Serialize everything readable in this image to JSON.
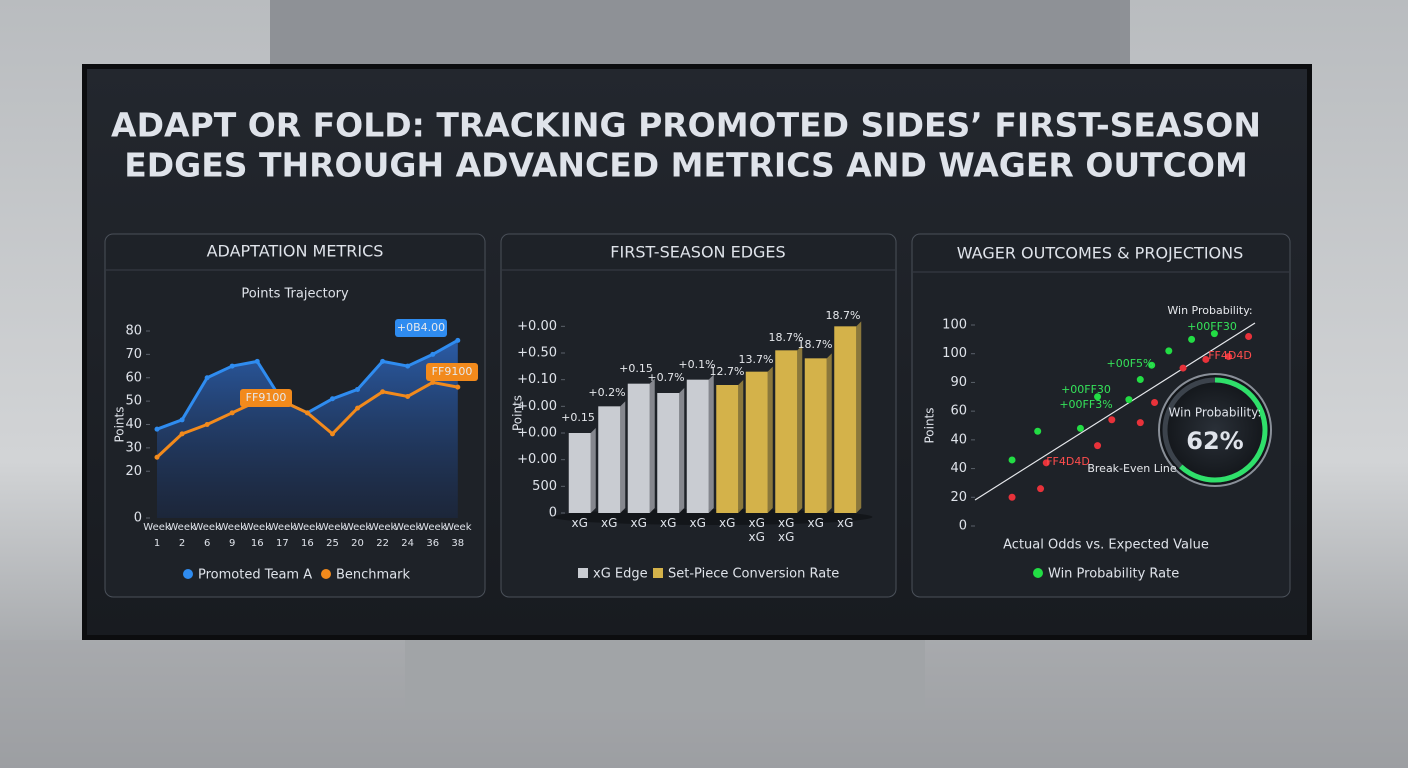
{
  "title": [
    "ADAPT OR FOLD: TRACKING PROMOTED SIDES’ FIRST-SEASON",
    "EDGES THROUGH ADVANCED METRICS AND WAGER OUTCOM"
  ],
  "chart_data": [
    {
      "type": "line",
      "title": "ADAPTATION METRICS",
      "subtitle": "Points Trajectory",
      "y_label": "Points",
      "categories": [
        "Week 1",
        "Week 2",
        "Week 6",
        "Week 9",
        "Week 16",
        "Week 17",
        "Week 16",
        "Week 25",
        "Week 20",
        "Week 22",
        "Week 24",
        "Week 36",
        "Week 38"
      ],
      "series": [
        {
          "name": "Promoted Team A",
          "color": "#2f8cf0",
          "values": [
            38,
            42,
            60,
            65,
            67,
            50,
            45,
            51,
            55,
            67,
            65,
            70,
            76
          ]
        },
        {
          "name": "Benchmark",
          "color": "#f28a1c",
          "values": [
            26,
            36,
            40,
            45,
            50,
            50,
            45,
            36,
            47,
            54,
            52,
            58,
            56
          ]
        }
      ],
      "ylim": [
        0,
        80
      ],
      "yticks": [
        0,
        20,
        30,
        40,
        50,
        60,
        70,
        80
      ],
      "annotations": [
        "+0B4.00",
        "FF9100",
        "FF9100"
      ]
    },
    {
      "type": "bar",
      "title": "FIRST-SEASON EDGES",
      "y_label": "Points",
      "categories": [
        "xG",
        "xG",
        "xG",
        "xG",
        "xG",
        "xG",
        "xG xG",
        "xG xG",
        "xG",
        "xG"
      ],
      "series": [
        {
          "name": "xG Edge",
          "color": "#c9ccd2",
          "values": [
            3.0,
            4.0,
            4.85,
            4.5,
            5.0,
            null,
            null,
            null,
            null,
            null
          ]
        },
        {
          "name": "Set-Piece Conversion Rate",
          "color": "#d4b24a",
          "values": [
            null,
            null,
            null,
            null,
            null,
            4.8,
            5.3,
            6.1,
            5.8,
            7.0
          ]
        }
      ],
      "ylim": [
        0,
        7.5
      ],
      "yticks": [
        {
          "value": 0,
          "label": "0"
        },
        {
          "value": 1,
          "label": "500"
        },
        {
          "value": 2,
          "label": "+0.00"
        },
        {
          "value": 3,
          "label": "+0.00"
        },
        {
          "value": 4,
          "label": "+0.00"
        },
        {
          "value": 5,
          "label": "+0.10"
        },
        {
          "value": 6,
          "label": "+0.50"
        },
        {
          "value": 7,
          "label": "+0.00"
        }
      ],
      "annotations": [
        "+0.15",
        "+0.2%",
        "+0.15",
        "+0.7%",
        "+0.1%",
        "12.7%",
        "13.7%",
        "18.7%",
        "18.7%",
        "18.7%"
      ]
    },
    {
      "type": "scatter",
      "title": "WAGER OUTCOMES & PROJECTIONS",
      "y_label": "Points",
      "x_label": "Actual Odds vs. Expected Value",
      "series": [
        {
          "name": "Win Probability Rate",
          "color": "#22dd44",
          "x": [
            1.3,
            2.2,
            3.7,
            4.3,
            5.4,
            5.8,
            6.2,
            6.8,
            7.6,
            8.4
          ],
          "values": [
            2.3,
            3.3,
            3.4,
            4.5,
            4.4,
            5.1,
            5.6,
            6.1,
            6.5,
            6.7
          ]
        },
        {
          "color": "#e8323a",
          "x": [
            1.3,
            2.3,
            2.5,
            4.3,
            4.8,
            5.8,
            6.3,
            7.3,
            8.1,
            8.9,
            9.6
          ],
          "values": [
            1.0,
            1.3,
            2.2,
            2.8,
            3.7,
            3.6,
            4.3,
            5.5,
            5.8,
            5.9,
            6.6
          ]
        }
      ],
      "xlim": [
        0,
        10
      ],
      "ylim": [
        0,
        7
      ],
      "yticks": [
        {
          "value": 0,
          "label": "0"
        },
        {
          "value": 1,
          "label": "20"
        },
        {
          "value": 2,
          "label": "40"
        },
        {
          "value": 3,
          "label": "40"
        },
        {
          "value": 4,
          "label": "60"
        },
        {
          "value": 5,
          "label": "90"
        },
        {
          "value": 6,
          "label": "100"
        },
        {
          "value": 7,
          "label": "100"
        }
      ],
      "gauge": {
        "label": "Win Probability:",
        "value": 62,
        "value_label": "62%"
      },
      "annotations": [
        "Win Probability:",
        "+00FF30",
        "+00F5%",
        "+00FF30",
        "+00FF3%",
        "FF4D4D",
        "FF4D4D",
        "Break-Even Line"
      ]
    }
  ]
}
